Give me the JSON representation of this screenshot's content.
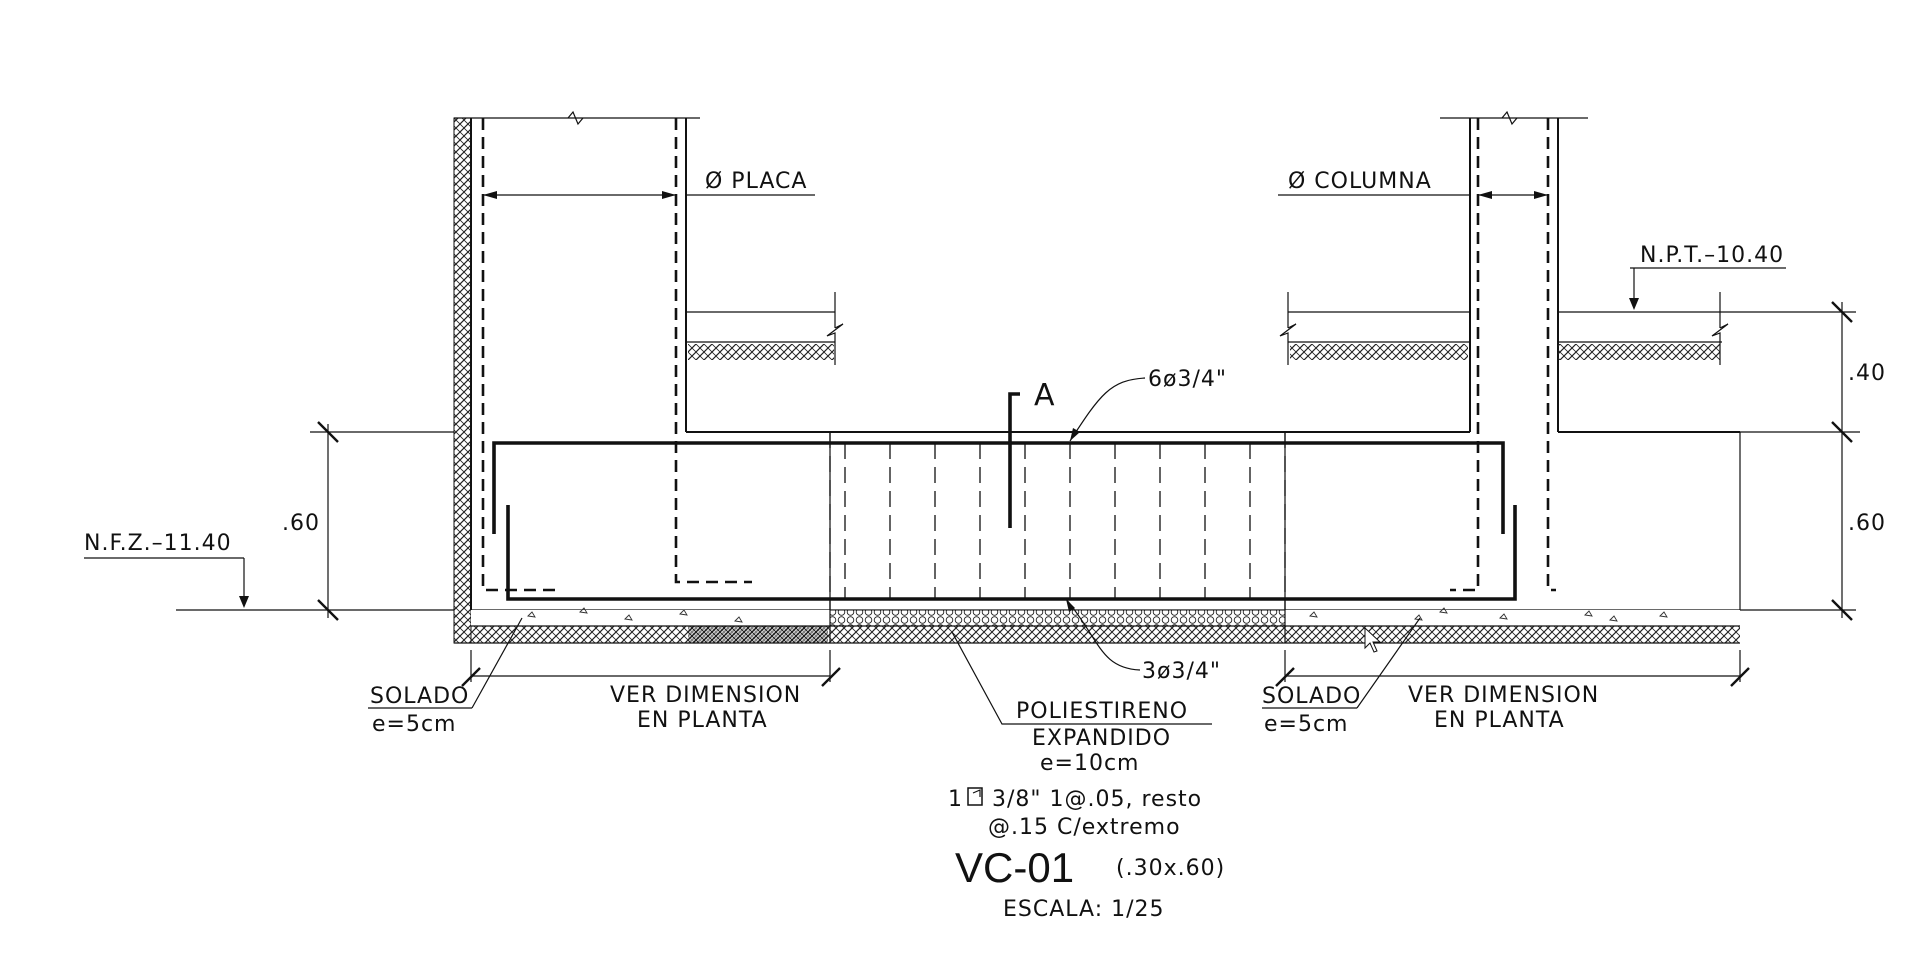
{
  "labels": {
    "placa": "Ø  PLACA",
    "columna": "Ø  COLUMNA",
    "npt": "N.P.T.–10.40",
    "nfz": "N.F.Z.–11.40",
    "dim_60_left": ".60",
    "dim_40_right": ".40",
    "dim_60_right": ".60",
    "section_mark": "A",
    "top_bars": "6ø3/4\"",
    "bottom_bars": "3ø3/4\"",
    "solado_left": "SOLADO",
    "solado_left_thk": "e=5cm",
    "ver_dim_left_1": "VER  DIMENSION",
    "ver_dim_left_2": "EN  PLANTA",
    "solado_right": "SOLADO",
    "solado_right_thk": "e=5cm",
    "ver_dim_right_1": "VER  DIMENSION",
    "ver_dim_right_2": "EN  PLANTA",
    "poli_1": "POLIESTIRENO",
    "poli_2": "EXPANDIDO",
    "poli_3": "e=10cm",
    "stirrup_1_prefix": "1",
    "stirrup_1_rest": "3/8\"  1@.05,  resto",
    "stirrup_2": "@.15  C/extremo"
  },
  "title": {
    "code": "VC-01",
    "size": "(.30x.60)",
    "scale": "ESCALA:  1/25"
  },
  "icons": {
    "stirrup_symbol": "stirrup-square-icon",
    "break_symbol": "break-line-icon",
    "cursor": "mouse-pointer-icon",
    "level_marker": "level-arrow-icon"
  }
}
